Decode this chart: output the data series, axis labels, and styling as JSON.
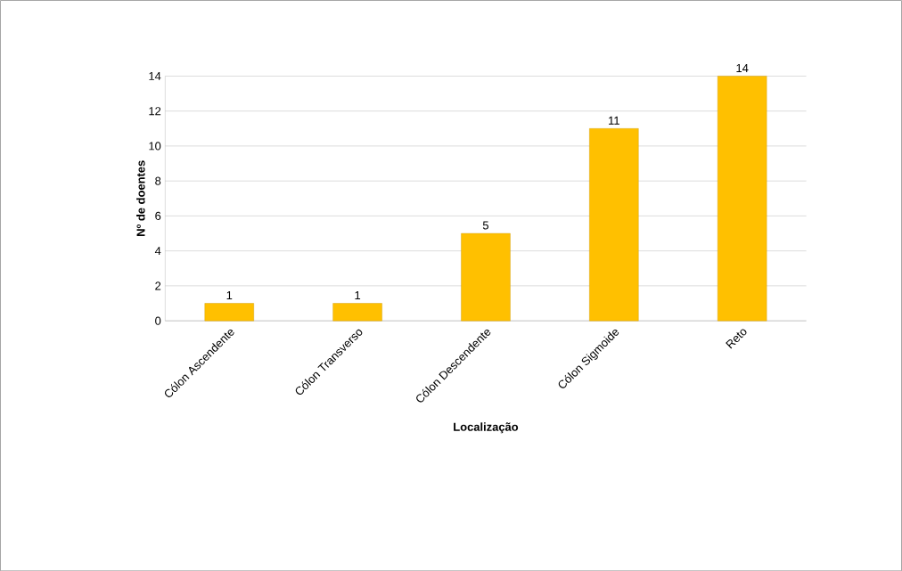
{
  "chart_data": {
    "type": "bar",
    "xlabel": "Localização",
    "ylabel": "Nº de doentes",
    "categories": [
      "Cólon Ascendente",
      "Cólon Transverso",
      "Cólon Descendente",
      "Cólon Sigmoide",
      "Reto"
    ],
    "values": [
      1,
      1,
      5,
      11,
      14
    ],
    "color": "#ffc000",
    "data_labels": true,
    "ylim": [
      0,
      14
    ],
    "yticks": [
      0,
      2,
      4,
      6,
      8,
      10,
      12,
      14
    ],
    "grid": "y"
  }
}
